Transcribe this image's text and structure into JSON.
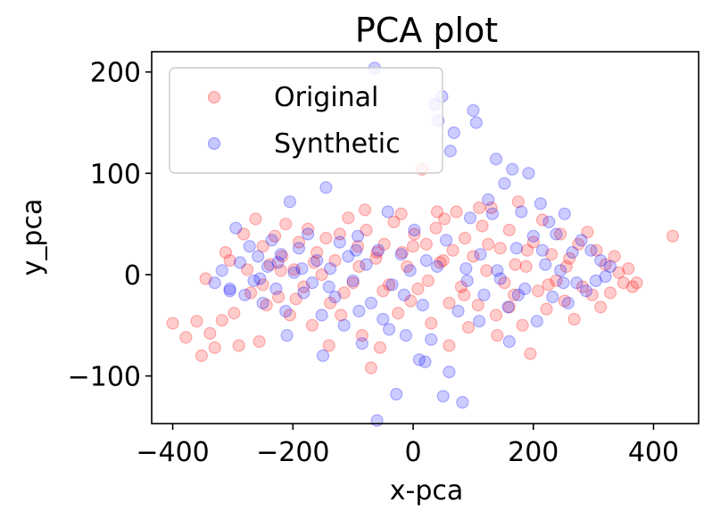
{
  "chart_data": {
    "type": "scatter",
    "title": "PCA plot",
    "xlabel": "x-pca",
    "ylabel": "y_pca",
    "xlim": [
      -435,
      475
    ],
    "ylim": [
      -147,
      220
    ],
    "xticks": [
      -400,
      -200,
      0,
      200,
      400
    ],
    "xtick_labels": [
      "−400",
      "−200",
      "0",
      "200",
      "400"
    ],
    "yticks": [
      -100,
      0,
      100,
      200
    ],
    "ytick_labels": [
      "−100",
      "0",
      "100",
      "200"
    ],
    "grid": false,
    "legend_position": "top-left",
    "series": [
      {
        "name": "Original",
        "color": "#ff0000",
        "points": [
          [
            -400,
            -48
          ],
          [
            -378,
            -62
          ],
          [
            -360,
            -46
          ],
          [
            -352,
            -80
          ],
          [
            -345,
            -4
          ],
          [
            -338,
            -58
          ],
          [
            -330,
            -72
          ],
          [
            -318,
            -45
          ],
          [
            -312,
            22
          ],
          [
            -305,
            14
          ],
          [
            -298,
            -38
          ],
          [
            -290,
            -70
          ],
          [
            -282,
            40
          ],
          [
            -276,
            5
          ],
          [
            -270,
            -18
          ],
          [
            -262,
            55
          ],
          [
            -256,
            -66
          ],
          [
            -250,
            28
          ],
          [
            -244,
            -30
          ],
          [
            -238,
            10
          ],
          [
            -230,
            38
          ],
          [
            -224,
            -22
          ],
          [
            -218,
            18
          ],
          [
            -212,
            50
          ],
          [
            -205,
            -40
          ],
          [
            -198,
            5
          ],
          [
            -190,
            32
          ],
          [
            -182,
            -12
          ],
          [
            -175,
            45
          ],
          [
            -168,
            -50
          ],
          [
            -160,
            22
          ],
          [
            -152,
            0
          ],
          [
            -145,
            36
          ],
          [
            -138,
            -28
          ],
          [
            -130,
            14
          ],
          [
            -122,
            40
          ],
          [
            -115,
            -18
          ],
          [
            -108,
            56
          ],
          [
            -100,
            -8
          ],
          [
            -92,
            28
          ],
          [
            -85,
            -60
          ],
          [
            -78,
            44
          ],
          [
            -70,
            -92
          ],
          [
            -62,
            16
          ],
          [
            -55,
            -72
          ],
          [
            -48,
            30
          ],
          [
            -40,
            -10
          ],
          [
            -32,
            52
          ],
          [
            -25,
            -38
          ],
          [
            -18,
            22
          ],
          [
            -10,
            8
          ],
          [
            -4,
            -26
          ],
          [
            2,
            40
          ],
          [
            8,
            -14
          ],
          [
            15,
            104
          ],
          [
            22,
            30
          ],
          [
            30,
            -48
          ],
          [
            38,
            46
          ],
          [
            45,
            12
          ],
          [
            52,
            55
          ],
          [
            60,
            -28
          ],
          [
            66,
            24
          ],
          [
            72,
            62
          ],
          [
            80,
            -12
          ],
          [
            86,
            36
          ],
          [
            92,
            -52
          ],
          [
            100,
            18
          ],
          [
            108,
            -30
          ],
          [
            115,
            48
          ],
          [
            122,
            4
          ],
          [
            130,
            66
          ],
          [
            138,
            -40
          ],
          [
            145,
            26
          ],
          [
            152,
            -8
          ],
          [
            160,
            44
          ],
          [
            168,
            -20
          ],
          [
            175,
            72
          ],
          [
            182,
            -50
          ],
          [
            188,
            8
          ],
          [
            195,
            -78
          ],
          [
            200,
            32
          ],
          [
            208,
            -16
          ],
          [
            215,
            54
          ],
          [
            222,
            -34
          ],
          [
            230,
            20
          ],
          [
            238,
            -6
          ],
          [
            245,
            40
          ],
          [
            252,
            -26
          ],
          [
            260,
            16
          ],
          [
            268,
            -44
          ],
          [
            275,
            30
          ],
          [
            282,
            -12
          ],
          [
            290,
            42
          ],
          [
            298,
            -20
          ],
          [
            305,
            24
          ],
          [
            312,
            -32
          ],
          [
            320,
            10
          ],
          [
            328,
            -18
          ],
          [
            335,
            18
          ],
          [
            342,
            2
          ],
          [
            350,
            -8
          ],
          [
            358,
            6
          ],
          [
            365,
            -12
          ],
          [
            372,
            -8
          ],
          [
            432,
            38
          ],
          [
            -60,
            22
          ],
          [
            -20,
            60
          ],
          [
            40,
            62
          ],
          [
            110,
            66
          ],
          [
            -140,
            -70
          ],
          [
            -80,
            64
          ],
          [
            60,
            -70
          ],
          [
            140,
            -60
          ],
          [
            170,
            10
          ],
          [
            -250,
            -10
          ],
          [
            -220,
            4
          ],
          [
            -195,
            -24
          ],
          [
            -165,
            12
          ],
          [
            -120,
            -40
          ],
          [
            -90,
            8
          ],
          [
            -50,
            -16
          ],
          [
            0,
            28
          ],
          [
            25,
            -6
          ],
          [
            50,
            14
          ],
          [
            85,
            -20
          ],
          [
            125,
            30
          ],
          [
            160,
            -32
          ],
          [
            190,
            24
          ],
          [
            225,
            -10
          ],
          [
            255,
            8
          ]
        ]
      },
      {
        "name": "Synthetic",
        "color": "#0000ff",
        "points": [
          [
            -330,
            -8
          ],
          [
            -318,
            4
          ],
          [
            -305,
            -16
          ],
          [
            -295,
            46
          ],
          [
            -288,
            12
          ],
          [
            -280,
            -20
          ],
          [
            -272,
            28
          ],
          [
            -265,
            -6
          ],
          [
            -258,
            18
          ],
          [
            -250,
            -28
          ],
          [
            -242,
            8
          ],
          [
            -235,
            34
          ],
          [
            -228,
            -14
          ],
          [
            -220,
            20
          ],
          [
            -212,
            -36
          ],
          [
            -205,
            72
          ],
          [
            -198,
            2
          ],
          [
            -190,
            26
          ],
          [
            -182,
            -18
          ],
          [
            -175,
            40
          ],
          [
            -168,
            -8
          ],
          [
            -160,
            14
          ],
          [
            -152,
            -40
          ],
          [
            -145,
            86
          ],
          [
            -138,
            6
          ],
          [
            -130,
            -22
          ],
          [
            -122,
            32
          ],
          [
            -115,
            -50
          ],
          [
            -108,
            18
          ],
          [
            -100,
            -6
          ],
          [
            -92,
            38
          ],
          [
            -85,
            -68
          ],
          [
            -78,
            10
          ],
          [
            -70,
            -28
          ],
          [
            -64,
            204
          ],
          [
            -58,
            24
          ],
          [
            -50,
            -44
          ],
          [
            -42,
            62
          ],
          [
            -35,
            -10
          ],
          [
            -28,
            -118
          ],
          [
            -20,
            20
          ],
          [
            -12,
            -60
          ],
          [
            -5,
            4
          ],
          [
            2,
            44
          ],
          [
            10,
            -84
          ],
          [
            16,
            -30
          ],
          [
            22,
            14
          ],
          [
            30,
            -64
          ],
          [
            36,
            168
          ],
          [
            42,
            152
          ],
          [
            48,
            176
          ],
          [
            55,
            34
          ],
          [
            62,
            122
          ],
          [
            68,
            140
          ],
          [
            75,
            -36
          ],
          [
            82,
            -126
          ],
          [
            88,
            6
          ],
          [
            95,
            56
          ],
          [
            100,
            162
          ],
          [
            105,
            150
          ],
          [
            112,
            20
          ],
          [
            118,
            -20
          ],
          [
            125,
            74
          ],
          [
            132,
            60
          ],
          [
            138,
            114
          ],
          [
            145,
            -4
          ],
          [
            152,
            90
          ],
          [
            158,
            -32
          ],
          [
            165,
            104
          ],
          [
            172,
            26
          ],
          [
            180,
            62
          ],
          [
            186,
            -14
          ],
          [
            192,
            100
          ],
          [
            200,
            38
          ],
          [
            206,
            -46
          ],
          [
            212,
            70
          ],
          [
            220,
            10
          ],
          [
            226,
            52
          ],
          [
            232,
            -22
          ],
          [
            238,
            40
          ],
          [
            245,
            4
          ],
          [
            252,
            60
          ],
          [
            258,
            -28
          ],
          [
            265,
            22
          ],
          [
            272,
            -8
          ],
          [
            280,
            34
          ],
          [
            288,
            -16
          ],
          [
            296,
            24
          ],
          [
            304,
            -6
          ],
          [
            312,
            14
          ],
          [
            320,
            -2
          ],
          [
            328,
            8
          ],
          [
            -60,
            -144
          ],
          [
            50,
            -120
          ],
          [
            -305,
            -14
          ],
          [
            -210,
            -60
          ],
          [
            -150,
            -80
          ],
          [
            -90,
            -36
          ],
          [
            -40,
            -54
          ],
          [
            20,
            -86
          ],
          [
            60,
            -96
          ],
          [
            110,
            -46
          ],
          [
            160,
            -66
          ],
          [
            -255,
            -4
          ],
          [
            -225,
            12
          ],
          [
            -185,
            6
          ],
          [
            -140,
            -12
          ],
          [
            -95,
            24
          ],
          [
            -15,
            -20
          ],
          [
            40,
            8
          ],
          [
            90,
            -6
          ],
          [
            140,
            4
          ],
          [
            175,
            -20
          ],
          [
            215,
            24
          ],
          [
            250,
            -8
          ]
        ]
      }
    ]
  }
}
